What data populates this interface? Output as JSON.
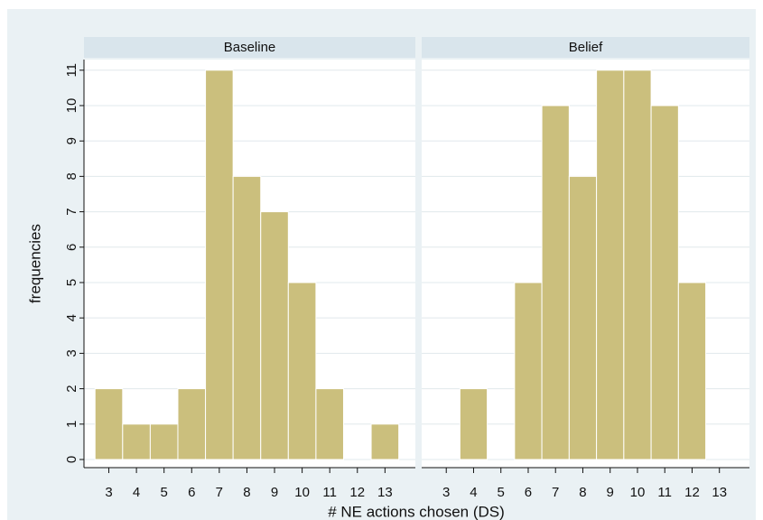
{
  "chart_data": [
    {
      "type": "histogram",
      "title": "Baseline",
      "ylabel": "frequencies",
      "xlabel": "# NE actions chosen (DS)",
      "bins": [
        2.5,
        3.5,
        4.5,
        5.5,
        6.5,
        7.5,
        8.5,
        9.5,
        10.5,
        11.5,
        12.5,
        13.5
      ],
      "values": [
        2,
        1,
        1,
        2,
        11,
        8,
        7,
        5,
        2,
        0,
        1
      ],
      "color": "#cbbf7d",
      "xlim": [
        2.1,
        14.1
      ],
      "xticks": [
        3,
        4,
        5,
        6,
        7,
        8,
        9,
        10,
        11,
        12,
        13
      ],
      "ylim": [
        -0.23,
        11.3
      ],
      "yticks": [
        0,
        1,
        2,
        3,
        4,
        5,
        6,
        7,
        8,
        9,
        10,
        11
      ],
      "grid": true
    },
    {
      "type": "histogram",
      "title": "Belief",
      "bins": [
        2.5,
        3.5,
        4.5,
        5.5,
        6.5,
        7.5,
        8.5,
        9.5,
        10.5,
        11.5,
        12.5,
        13.5
      ],
      "values": [
        0,
        2,
        0,
        5,
        10,
        8,
        11,
        11,
        10,
        5,
        0
      ],
      "color": "#cbbf7d",
      "xlim": [
        2.1,
        14.1
      ],
      "xticks": [
        3,
        4,
        5,
        6,
        7,
        8,
        9,
        10,
        11,
        12,
        13
      ],
      "ylim": [
        -0.23,
        11.3
      ],
      "yticks": [
        0,
        1,
        2,
        3,
        4,
        5,
        6,
        7,
        8,
        9,
        10,
        11
      ],
      "grid": true
    }
  ]
}
